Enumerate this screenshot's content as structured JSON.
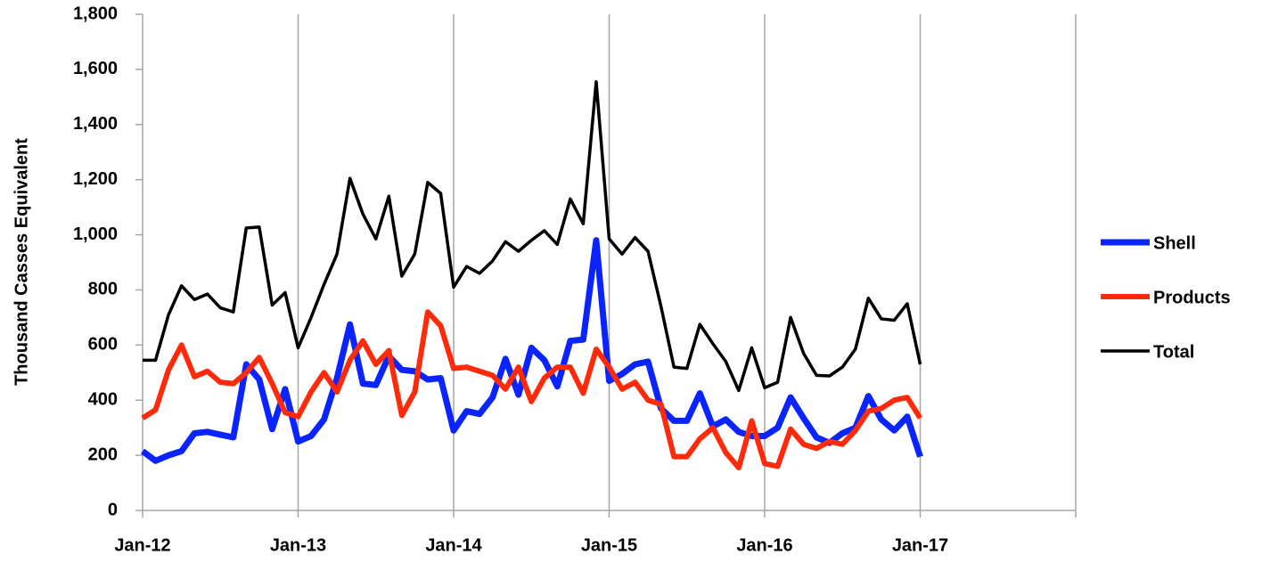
{
  "chart_data": {
    "type": "line",
    "y_label": "Thousand Casses Equivalent",
    "categories": [
      "Jan-12",
      null,
      null,
      null,
      null,
      null,
      null,
      null,
      null,
      null,
      null,
      null,
      "Jan-13",
      null,
      null,
      null,
      null,
      null,
      null,
      null,
      null,
      null,
      null,
      null,
      "Jan-14",
      null,
      null,
      null,
      null,
      null,
      null,
      null,
      null,
      null,
      null,
      null,
      "Jan-15",
      null,
      null,
      null,
      null,
      null,
      null,
      null,
      null,
      null,
      null,
      null,
      "Jan-16",
      null,
      null,
      null,
      null,
      null,
      null,
      null,
      null,
      null,
      null,
      null,
      "Jan-17",
      null,
      null,
      null,
      null,
      null,
      null,
      null,
      null,
      null,
      null,
      null
    ],
    "series": [
      {
        "name": "Shell",
        "color": "#0a24ff",
        "width": 7,
        "values": [
          215,
          180,
          200,
          215,
          280,
          285,
          275,
          265,
          530,
          475,
          295,
          440,
          250,
          270,
          330,
          480,
          675,
          460,
          455,
          560,
          510,
          505,
          475,
          480,
          290,
          360,
          350,
          410,
          550,
          420,
          590,
          545,
          450,
          615,
          620,
          980,
          470,
          495,
          530,
          540,
          370,
          325,
          325,
          425,
          305,
          330,
          285,
          270,
          270,
          300,
          410,
          335,
          265,
          245,
          280,
          300,
          415,
          330,
          290,
          340,
          195,
          null,
          null,
          null,
          null,
          null,
          null,
          null,
          null,
          null,
          null,
          null
        ]
      },
      {
        "name": "Products",
        "color": "#ff2a0a",
        "width": 6,
        "values": [
          335,
          365,
          510,
          600,
          485,
          505,
          465,
          460,
          500,
          555,
          460,
          355,
          340,
          430,
          500,
          430,
          545,
          615,
          530,
          580,
          345,
          430,
          720,
          670,
          515,
          520,
          505,
          490,
          440,
          520,
          395,
          480,
          520,
          520,
          425,
          585,
          520,
          440,
          465,
          400,
          385,
          195,
          195,
          260,
          300,
          210,
          155,
          325,
          170,
          160,
          295,
          240,
          225,
          250,
          240,
          290,
          360,
          370,
          400,
          410,
          335,
          null,
          null,
          null,
          null,
          null,
          null,
          null,
          null,
          null,
          null,
          null
        ]
      },
      {
        "name": "Total",
        "color": "#000000",
        "width": 3.5,
        "values": [
          545,
          545,
          710,
          815,
          765,
          785,
          735,
          720,
          1025,
          1028,
          745,
          790,
          590,
          700,
          820,
          930,
          1205,
          1075,
          985,
          1140,
          850,
          930,
          1190,
          1150,
          810,
          885,
          860,
          905,
          975,
          940,
          980,
          1015,
          965,
          1130,
          1040,
          1555,
          985,
          930,
          990,
          940,
          740,
          520,
          515,
          675,
          605,
          540,
          435,
          590,
          445,
          465,
          700,
          570,
          490,
          488,
          520,
          585,
          770,
          695,
          690,
          750,
          530,
          null,
          null,
          null,
          null,
          null,
          null,
          null,
          null,
          null,
          null,
          null
        ]
      }
    ],
    "ylim": [
      0,
      1800
    ],
    "yticks": [
      0,
      200,
      400,
      600,
      800,
      {
        "value": 1000,
        "label": "1,000"
      },
      {
        "value": 1200,
        "label": "1,200"
      },
      {
        "value": 1400,
        "label": "1,400"
      },
      {
        "value": 1600,
        "label": "1,600"
      },
      {
        "value": 1800,
        "label": "1,800"
      }
    ],
    "grid": "x",
    "legend": "right"
  }
}
